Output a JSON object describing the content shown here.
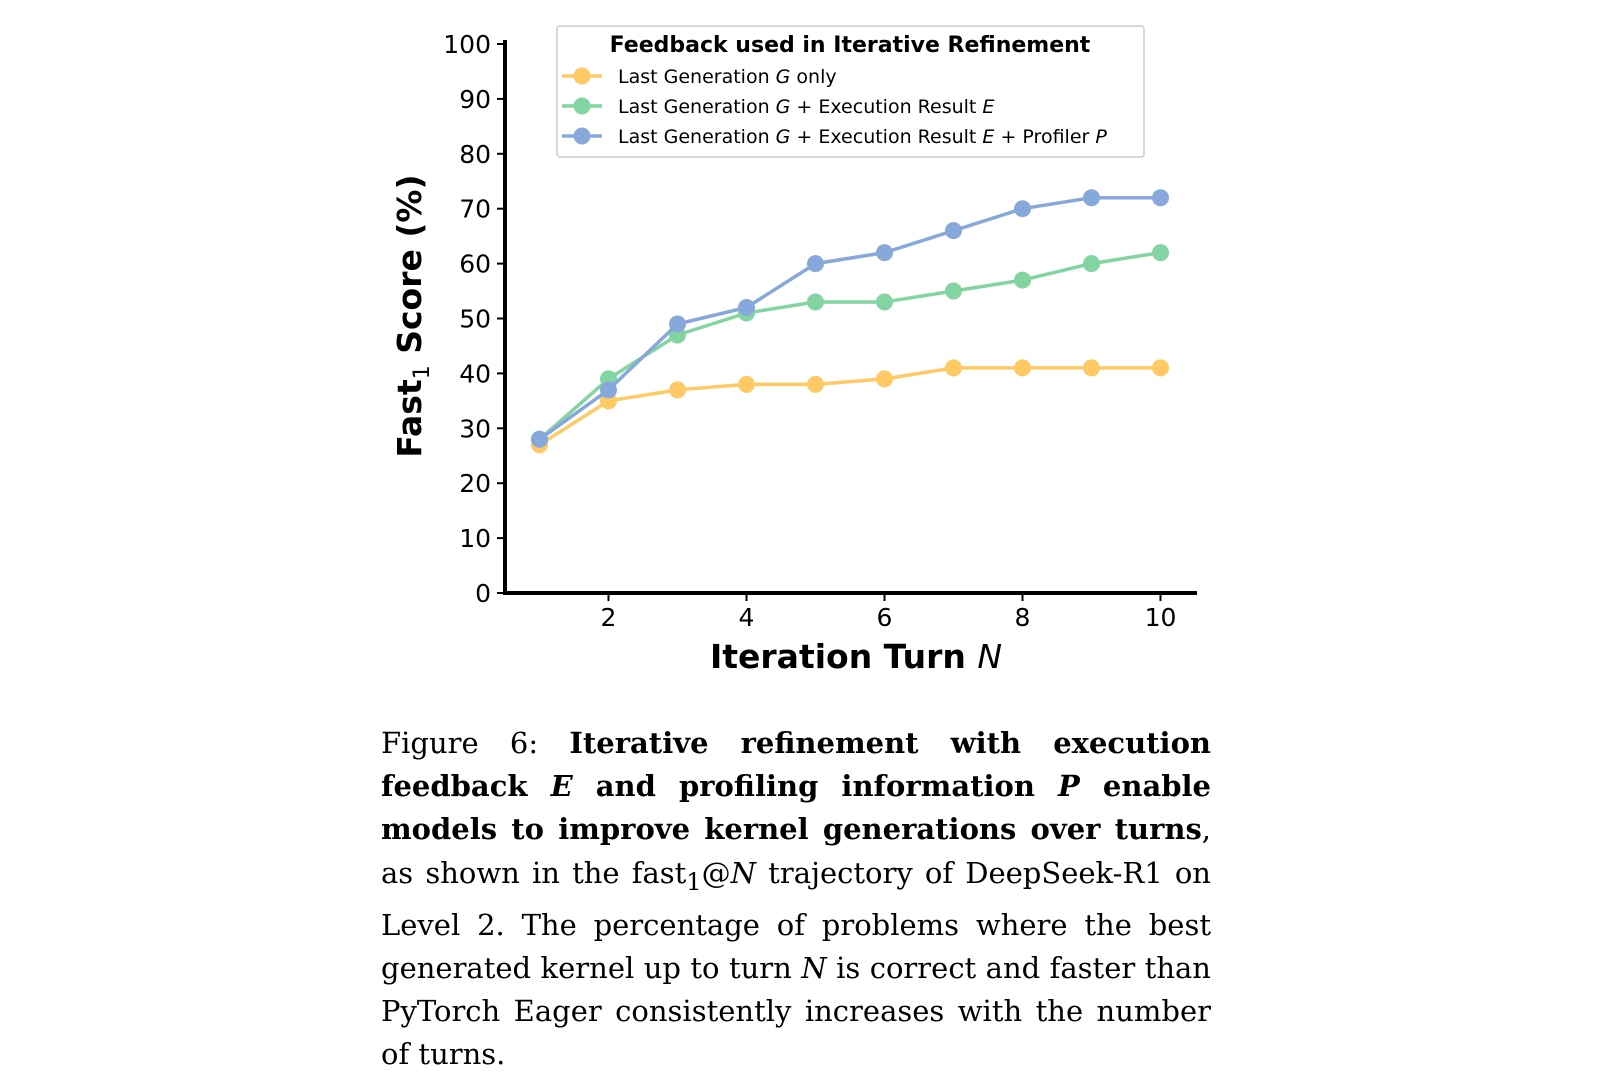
{
  "chart_data": {
    "type": "line",
    "title": "",
    "xlabel_prefix": "Iteration Turn ",
    "xlabel_var": "N",
    "ylabel_main": "Fast",
    "ylabel_sub": "1",
    "ylabel_suffix": " Score (%)",
    "xlim": [
      0.5,
      10.5
    ],
    "ylim": [
      0,
      100
    ],
    "x_ticks": [
      2,
      4,
      6,
      8,
      10
    ],
    "y_ticks": [
      0,
      10,
      20,
      30,
      40,
      50,
      60,
      70,
      80,
      90,
      100
    ],
    "x": [
      1,
      2,
      3,
      4,
      5,
      6,
      7,
      8,
      9,
      10
    ],
    "legend_title": "Feedback used in Iterative Refinement",
    "legend_placement": "top",
    "grid": false,
    "series": [
      {
        "legend_parts": [
          {
            "t": "Last Generation ",
            "i": false
          },
          {
            "t": "G",
            "i": true
          },
          {
            "t": " only",
            "i": false
          }
        ],
        "color": "#FFC966",
        "values": [
          27,
          35,
          37,
          38,
          38,
          39,
          41,
          41,
          41,
          41
        ]
      },
      {
        "legend_parts": [
          {
            "t": "Last Generation ",
            "i": false
          },
          {
            "t": "G",
            "i": true
          },
          {
            "t": " + Execution Result ",
            "i": false
          },
          {
            "t": "E",
            "i": true
          }
        ],
        "color": "#82D4A0",
        "values": [
          28,
          39,
          47,
          51,
          53,
          53,
          55,
          57,
          60,
          62
        ]
      },
      {
        "legend_parts": [
          {
            "t": "Last Generation ",
            "i": false
          },
          {
            "t": "G",
            "i": true
          },
          {
            "t": " + Execution Result ",
            "i": false
          },
          {
            "t": "E",
            "i": true
          },
          {
            "t": " + Profiler ",
            "i": false
          },
          {
            "t": "P",
            "i": true
          }
        ],
        "color": "#86A8DA",
        "values": [
          28,
          37,
          49,
          52,
          60,
          62,
          66,
          70,
          72,
          72
        ]
      }
    ]
  },
  "caption": {
    "label": "Figure 6: ",
    "bold_1": "Iterative refinement with execution feedback ",
    "bold_var_1": "E",
    "bold_2": " and profiling information ",
    "bold_var_2": "P",
    "bold_3": " en­able models to improve kernel generations over turns",
    "text_1": ", as shown in the fast",
    "text_sub": "1",
    "text_2": "@",
    "text_var_1": "N",
    "text_3": " trajectory of DeepSeek-R1 on Level 2.  The percentage of prob­lems where the best generated kernel up to turn ",
    "text_var_2": "N",
    "text_4": " is correct and faster than PyTorch Eager consistently increases with the number of turns."
  }
}
